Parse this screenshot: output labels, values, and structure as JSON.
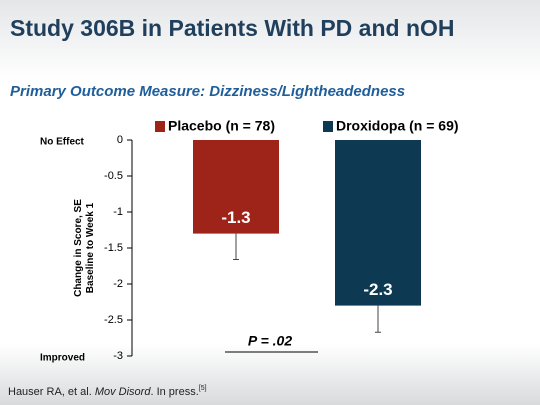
{
  "title": "Study 306B in Patients With PD and nOH",
  "subtitle": "Primary Outcome Measure: Dizziness/Lightheadedness",
  "footnote": {
    "authors": "Hauser RA, et al. ",
    "journal": "Mov Disord",
    "rest": ". In press.",
    "ref": "[5]"
  },
  "chart_data": {
    "type": "bar",
    "ylabel": [
      "Change in Score, SE",
      "Baseline to Week 1"
    ],
    "ylim": [
      -3,
      0
    ],
    "yticks": [
      0,
      -0.5,
      -1,
      -1.5,
      -2,
      -2.5,
      -3
    ],
    "axis_notes": {
      "top": "No Effect",
      "bottom": "Improved"
    },
    "series": [
      {
        "name": "Placebo (n = 78)",
        "color": "#9e2318",
        "values": [
          -1.3
        ],
        "errors": [
          0.36
        ]
      },
      {
        "name": "Droxidopa (n = 69)",
        "color": "#0d3a52",
        "values": [
          -2.3
        ],
        "errors": [
          0.37
        ]
      }
    ],
    "annotation": "P = .02",
    "legend": "top"
  }
}
